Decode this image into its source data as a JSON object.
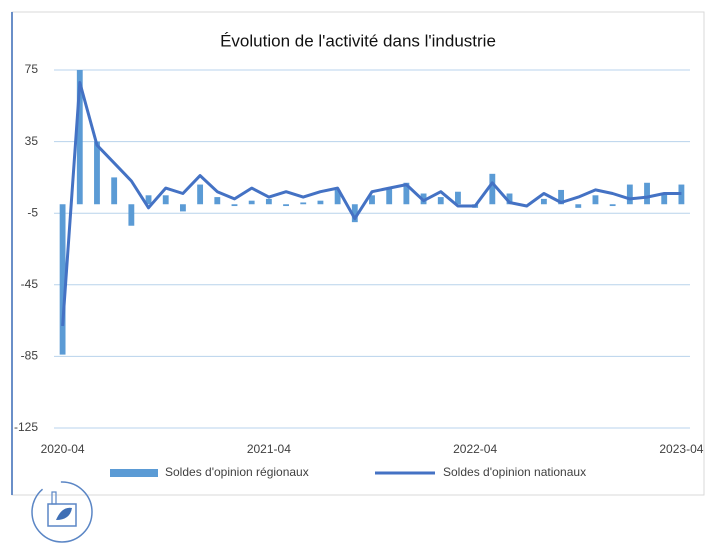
{
  "chart_data": {
    "type": "bar-line",
    "title": "Évolution de l'activité dans l'industrie",
    "categories": [
      "2020-04",
      null,
      null,
      null,
      null,
      null,
      null,
      null,
      null,
      null,
      null,
      null,
      "2021-04",
      null,
      null,
      null,
      null,
      null,
      null,
      null,
      null,
      null,
      null,
      null,
      "2022-04",
      null,
      null,
      null,
      null,
      null,
      null,
      null,
      null,
      null,
      null,
      null,
      "2023-04"
    ],
    "series": [
      {
        "name": "Soldes d'opinion régionaux",
        "type": "bar",
        "color": "#5b9bd5",
        "values": [
          -84,
          75,
          35,
          15,
          -12,
          5,
          5,
          -4,
          11,
          4,
          -1,
          2,
          3,
          -1,
          1,
          2,
          8,
          -10,
          5,
          9,
          12,
          6,
          4,
          7,
          -2,
          17,
          6,
          0,
          3,
          8,
          -2,
          5,
          -1,
          11,
          12,
          6,
          11
        ]
      },
      {
        "name": "Soldes d'opinion nationaux",
        "type": "line",
        "color": "#4472c4",
        "values": [
          -68,
          68,
          33,
          23,
          13,
          -2,
          9,
          6,
          16,
          7,
          3,
          9,
          4,
          7,
          4,
          7,
          9,
          -8,
          7,
          9,
          11,
          2,
          7,
          -1,
          -1,
          12,
          1,
          -1,
          6,
          1,
          4,
          8,
          6,
          3,
          4,
          6,
          6
        ]
      }
    ],
    "ylim": [
      -125,
      75
    ],
    "yticks": [
      75,
      35,
      -5,
      -45,
      -85,
      -125
    ],
    "grid": true,
    "legend": "bottom"
  }
}
